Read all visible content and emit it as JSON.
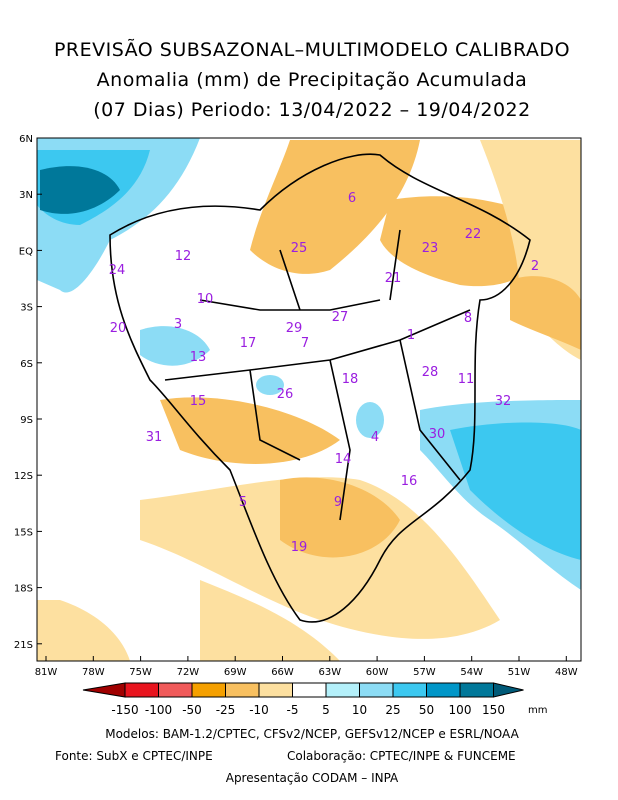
{
  "header": {
    "title_lines": [
      "PREVISÃO SUBSAZONAL–MULTIMODELO CALIBRADO",
      "Anomalia (mm) de Precipitação Acumulada",
      "(07 Dias) Periodo: 13/04/2022 – 19/04/2022"
    ]
  },
  "map": {
    "lat_labels": [
      "6N",
      "3N",
      "EQ",
      "3S",
      "6S",
      "9S",
      "12S",
      "15S",
      "18S",
      "21S"
    ],
    "lon_labels": [
      "81W",
      "78W",
      "75W",
      "72W",
      "69W",
      "66W",
      "63W",
      "60W",
      "57W",
      "54W",
      "51W",
      "48W"
    ],
    "regions": [
      "6",
      "25",
      "23",
      "22",
      "2",
      "21",
      "12",
      "24",
      "10",
      "20",
      "3",
      "29",
      "27",
      "7",
      "8",
      "1",
      "13",
      "17",
      "18",
      "28",
      "11",
      "26",
      "15",
      "32",
      "31",
      "4",
      "30",
      "14",
      "16",
      "9",
      "5",
      "19"
    ]
  },
  "colorbar": {
    "colors": [
      "#a00000",
      "#e8141e",
      "#f05a5a",
      "#f5a000",
      "#f8c060",
      "#fde0a0",
      "#ffffff",
      "#b4f0fa",
      "#8cdcf5",
      "#3cc8f0",
      "#0096c8",
      "#00789a",
      "#005a78"
    ],
    "labels": [
      "-150",
      "-100",
      "-50",
      "-25",
      "-10",
      "-5",
      "5",
      "10",
      "25",
      "50",
      "100",
      "150"
    ],
    "unit": "mm"
  },
  "footer": {
    "models": "Modelos: BAM-1.2/CPTEC, CFSv2/NCEP, GEFSv12/NCEP e ESRL/NOAA",
    "source": "Fonte: SubX e CPTEC/INPE",
    "collab": "Colaboração: CPTEC/INPE & FUNCEME",
    "presentation": "Apresentação CODAM – INPA"
  }
}
